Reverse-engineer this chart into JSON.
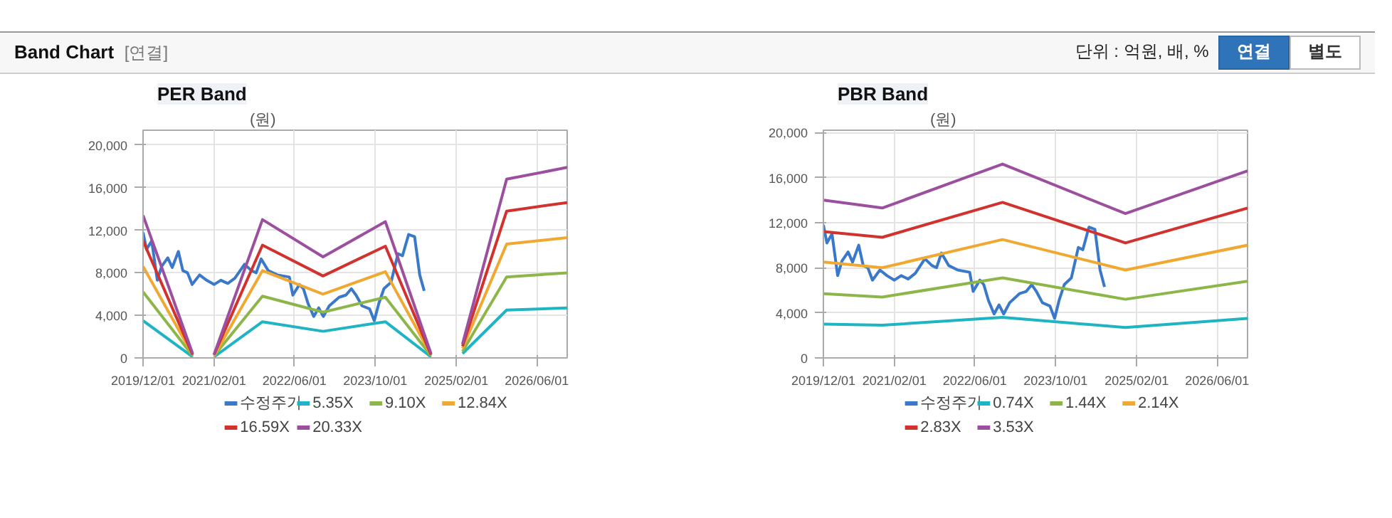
{
  "chart_data": [
    {
      "type": "other",
      "title": "Band Chart",
      "annotations": [
        "[연결]",
        "단위 : 억원, 배, %",
        "연결",
        "별도"
      ]
    },
    {
      "type": "line",
      "title": "PER Band",
      "ylabel": "(원)",
      "legend": "bottom",
      "grid": true,
      "xlim": [
        "2019-12-01",
        "2026-12-01"
      ],
      "xticks": [
        {
          "value": "2019-12-01",
          "label": "2019/12/01"
        },
        {
          "value": "2021-02-01",
          "label": "2021/02/01"
        },
        {
          "value": "2022-06-01",
          "label": "2022/06/01"
        },
        {
          "value": "2023-10-01",
          "label": "2023/10/01"
        },
        {
          "value": "2025-02-01",
          "label": "2025/02/01"
        },
        {
          "value": "2026-06-01",
          "label": "2026/06/01"
        }
      ],
      "ylim": [
        0,
        21400
      ],
      "yticks": [
        0,
        {
          "value": 4000,
          "label": "4,000"
        },
        {
          "value": 8000,
          "label": "8,000"
        },
        {
          "value": 12000,
          "label": "12,000"
        },
        {
          "value": 16000,
          "label": "16,000"
        },
        {
          "value": 20000,
          "label": "20,000"
        }
      ],
      "series": [
        {
          "name": "수정주가",
          "color": "#3a78c9",
          "x": [
            "2019-12-01",
            "2019-12-22",
            "2020-01-22",
            "2020-02-25",
            "2020-03-22",
            "2020-04-28",
            "2020-05-25",
            "2020-07-01",
            "2020-07-28",
            "2020-08-25",
            "2020-09-22",
            "2020-11-06",
            "2020-12-18",
            "2021-02-01",
            "2021-03-14",
            "2021-04-25",
            "2021-06-07",
            "2021-08-04",
            "2021-09-15",
            "2021-10-13",
            "2021-11-12",
            "2021-12-25",
            "2022-02-18",
            "2022-05-01",
            "2022-05-22",
            "2022-07-01",
            "2022-07-25",
            "2022-08-22",
            "2022-09-25",
            "2022-10-25",
            "2022-11-22",
            "2022-12-28",
            "2023-02-25",
            "2023-04-07",
            "2023-05-10",
            "2023-06-07",
            "2023-07-13",
            "2023-08-28",
            "2023-09-25",
            "2023-10-22",
            "2023-11-22",
            "2024-01-04",
            "2024-02-15",
            "2024-03-13",
            "2024-04-19",
            "2024-05-25",
            "2024-06-25",
            "2024-07-22"
          ],
          "values": [
            11800,
            10200,
            11000,
            7300,
            8600,
            9400,
            8500,
            10000,
            8200,
            8000,
            6900,
            7800,
            7300,
            6900,
            7300,
            7000,
            7500,
            8800,
            8200,
            8000,
            9300,
            8200,
            7800,
            7600,
            5900,
            6900,
            6500,
            5100,
            3900,
            4700,
            3900,
            4900,
            5700,
            5900,
            6500,
            5900,
            4900,
            4600,
            3500,
            5100,
            6500,
            7100,
            9800,
            9600,
            11600,
            11400,
            7800,
            6300
          ]
        },
        {
          "name": "5.35X",
          "color": "#1eb4c4",
          "x": [
            "2019-12-01",
            "2020-09-25",
            "2020-12-01",
            "2021-02-01",
            "2021-11-20",
            "2022-11-20",
            "2023-12-01",
            "2024-09-01",
            "2024-12-01",
            "2025-03-10",
            "2025-12-01",
            "2026-12-01"
          ],
          "values": [
            3500,
            100,
            null,
            100,
            3400,
            2500,
            3400,
            100,
            null,
            400,
            4500,
            4700
          ]
        },
        {
          "name": "9.10X",
          "color": "#8db648",
          "x": [
            "2019-12-01",
            "2020-09-25",
            "2020-12-01",
            "2021-02-01",
            "2021-11-20",
            "2022-11-20",
            "2023-12-01",
            "2024-09-01",
            "2024-12-01",
            "2025-03-10",
            "2025-12-01",
            "2026-12-01"
          ],
          "values": [
            6200,
            200,
            null,
            200,
            5800,
            4300,
            5700,
            200,
            null,
            600,
            7600,
            8000
          ]
        },
        {
          "name": "12.84X",
          "color": "#f0a830",
          "x": [
            "2019-12-01",
            "2020-09-25",
            "2020-12-01",
            "2021-02-01",
            "2021-11-20",
            "2022-11-20",
            "2023-12-01",
            "2024-09-01",
            "2024-12-01",
            "2025-03-10",
            "2025-12-01",
            "2026-12-01"
          ],
          "values": [
            8600,
            300,
            null,
            200,
            8200,
            6000,
            8100,
            300,
            null,
            900,
            10700,
            11300
          ]
        },
        {
          "name": "16.59X",
          "color": "#d2322d",
          "x": [
            "2019-12-01",
            "2020-09-25",
            "2020-12-01",
            "2021-02-01",
            "2021-11-20",
            "2022-11-20",
            "2023-12-01",
            "2024-09-01",
            "2024-12-01",
            "2025-03-10",
            "2025-12-01",
            "2026-12-01"
          ],
          "values": [
            11000,
            300,
            null,
            300,
            10600,
            7700,
            10500,
            300,
            null,
            1100,
            13800,
            14600
          ]
        },
        {
          "name": "20.33X",
          "color": "#9b4f9e",
          "x": [
            "2019-12-01",
            "2020-09-25",
            "2020-12-01",
            "2021-02-01",
            "2021-11-20",
            "2022-11-20",
            "2023-12-01",
            "2024-09-01",
            "2024-12-01",
            "2025-03-10",
            "2025-12-01",
            "2026-12-01"
          ],
          "values": [
            13400,
            400,
            null,
            300,
            13000,
            9500,
            12800,
            400,
            null,
            1300,
            16800,
            17900
          ]
        }
      ]
    },
    {
      "type": "line",
      "title": "PBR Band",
      "ylabel": "(원)",
      "legend": "bottom",
      "grid": true,
      "xlim": [
        "2019-12-01",
        "2026-12-01"
      ],
      "xticks": [
        {
          "value": "2019-12-01",
          "label": "2019/12/01"
        },
        {
          "value": "2021-02-01",
          "label": "2021/02/01"
        },
        {
          "value": "2022-06-01",
          "label": "2022/06/01"
        },
        {
          "value": "2023-10-01",
          "label": "2023/10/01"
        },
        {
          "value": "2025-02-01",
          "label": "2025/02/01"
        },
        {
          "value": "2026-06-01",
          "label": "2026/06/01"
        }
      ],
      "ylim": [
        0,
        20200
      ],
      "yticks": [
        0,
        {
          "value": 4000,
          "label": "4,000"
        },
        {
          "value": 8000,
          "label": "8,000"
        },
        {
          "value": 12000,
          "label": "12,000"
        },
        {
          "value": 16000,
          "label": "16,000"
        },
        {
          "value": 20000,
          "label": "20,000"
        }
      ],
      "series": [
        {
          "name": "수정주가",
          "color": "#3a78c9",
          "x": [
            "2019-12-01",
            "2019-12-22",
            "2020-01-22",
            "2020-02-25",
            "2020-03-22",
            "2020-04-28",
            "2020-05-25",
            "2020-07-01",
            "2020-07-28",
            "2020-08-25",
            "2020-09-22",
            "2020-11-06",
            "2020-12-18",
            "2021-02-01",
            "2021-03-14",
            "2021-04-25",
            "2021-06-07",
            "2021-08-04",
            "2021-09-15",
            "2021-10-13",
            "2021-11-12",
            "2021-12-25",
            "2022-02-18",
            "2022-05-01",
            "2022-05-22",
            "2022-07-01",
            "2022-07-25",
            "2022-08-22",
            "2022-09-25",
            "2022-10-25",
            "2022-11-22",
            "2022-12-28",
            "2023-02-25",
            "2023-04-07",
            "2023-05-10",
            "2023-06-07",
            "2023-07-13",
            "2023-08-28",
            "2023-09-25",
            "2023-10-22",
            "2023-11-22",
            "2024-01-04",
            "2024-02-15",
            "2024-03-13",
            "2024-04-19",
            "2024-05-25",
            "2024-06-25",
            "2024-07-22"
          ],
          "values": [
            11800,
            10200,
            11000,
            7300,
            8600,
            9400,
            8500,
            10000,
            8200,
            8000,
            6900,
            7800,
            7300,
            6900,
            7300,
            7000,
            7500,
            8800,
            8200,
            8000,
            9300,
            8200,
            7800,
            7600,
            5900,
            6900,
            6500,
            5100,
            3900,
            4700,
            3900,
            4900,
            5700,
            5900,
            6500,
            5900,
            4900,
            4600,
            3500,
            5100,
            6500,
            7100,
            9800,
            9600,
            11600,
            11400,
            7800,
            6300
          ]
        },
        {
          "name": "0.74X",
          "color": "#1eb4c4",
          "x": [
            "2019-12-01",
            "2020-11-20",
            "2022-11-15",
            "2024-11-25",
            "2026-12-01"
          ],
          "values": [
            3000,
            2900,
            3600,
            2700,
            3500
          ]
        },
        {
          "name": "1.44X",
          "color": "#8db648",
          "x": [
            "2019-12-01",
            "2020-11-20",
            "2022-11-15",
            "2024-11-25",
            "2026-12-01"
          ],
          "values": [
            5700,
            5400,
            7100,
            5200,
            6800
          ]
        },
        {
          "name": "2.14X",
          "color": "#f0a830",
          "x": [
            "2019-12-01",
            "2020-11-20",
            "2022-11-15",
            "2024-11-25",
            "2026-12-01"
          ],
          "values": [
            8500,
            8000,
            10500,
            7800,
            10000
          ]
        },
        {
          "name": "2.83X",
          "color": "#d2322d",
          "x": [
            "2019-12-01",
            "2020-11-20",
            "2022-11-15",
            "2024-11-25",
            "2026-12-01"
          ],
          "values": [
            11200,
            10700,
            13800,
            10200,
            13300
          ]
        },
        {
          "name": "3.53X",
          "color": "#9b4f9e",
          "x": [
            "2019-12-01",
            "2020-11-20",
            "2022-11-15",
            "2024-11-25",
            "2026-12-01"
          ],
          "values": [
            14000,
            13300,
            17200,
            12800,
            16600
          ]
        }
      ]
    }
  ]
}
